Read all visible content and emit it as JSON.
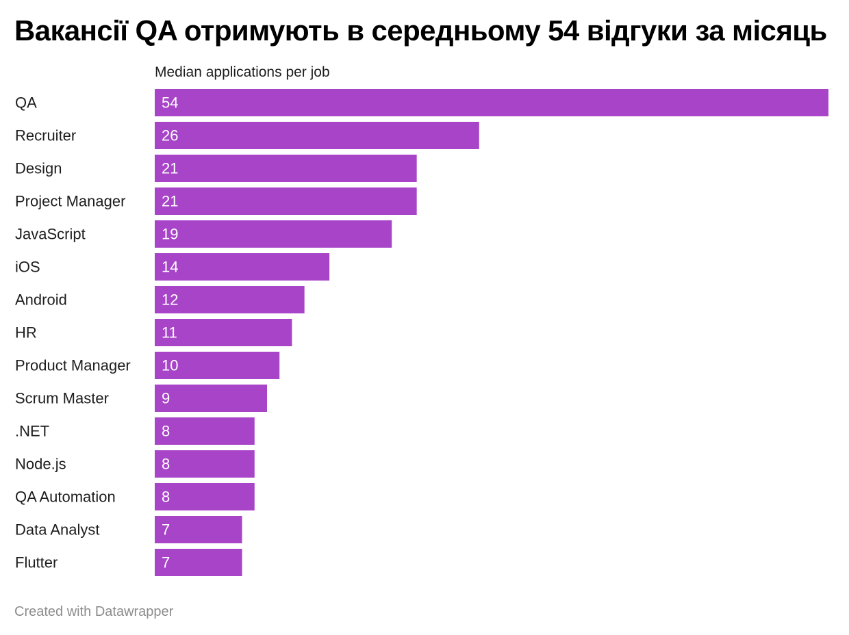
{
  "title": "Вакансії QA отримують в середньому 54 відгуки за місяць",
  "column_header": "Median applications per job",
  "footer": "Created with Datawrapper",
  "colors": {
    "bar": "#a844c8",
    "bar_label": "#ffffff",
    "category_label": "#1d1d1d"
  },
  "chart_data": {
    "type": "bar",
    "orientation": "horizontal",
    "title": "Вакансії QA отримують в середньому 54 відгуки за місяць",
    "xlabel": "Median applications per job",
    "ylabel": "",
    "xlim": [
      0,
      54
    ],
    "grid": false,
    "categories": [
      "QA",
      "Recruiter",
      "Design",
      "Project Manager",
      "JavaScript",
      "iOS",
      "Android",
      "HR",
      "Product Manager",
      "Scrum Master",
      ".NET",
      "Node.js",
      "QA Automation",
      "Data Analyst",
      "Flutter"
    ],
    "values": [
      54,
      26,
      21,
      21,
      19,
      14,
      12,
      11,
      10,
      9,
      8,
      8,
      8,
      7,
      7
    ]
  }
}
